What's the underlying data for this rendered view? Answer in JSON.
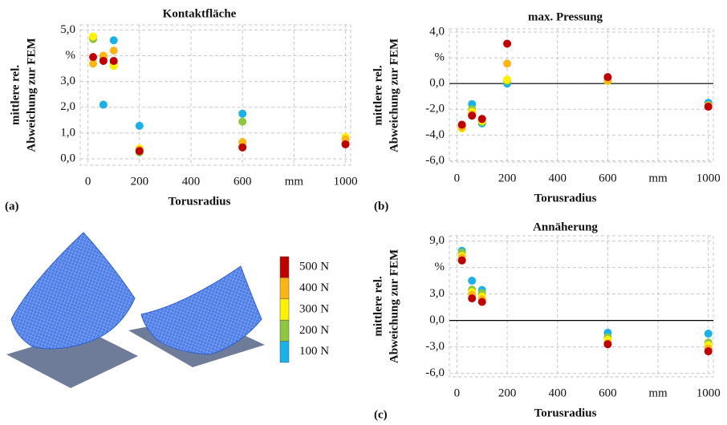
{
  "legend": {
    "series": [
      {
        "name": "500 N",
        "color": "#c00000"
      },
      {
        "name": "400 N",
        "color": "#fdb515"
      },
      {
        "name": "300 N",
        "color": "#fff200"
      },
      {
        "name": "200 N",
        "color": "#8dc63f"
      },
      {
        "name": "100 N",
        "color": "#1ab0e8"
      }
    ]
  },
  "chart_data": [
    {
      "type": "scatter",
      "title": "Kontaktfläche",
      "panel_label": "(a)",
      "x_label": "Torusradius",
      "y_label": [
        "mittlere rel.",
        "Abweichung zur FEM"
      ],
      "x": [
        20,
        60,
        100,
        200,
        600,
        1000
      ],
      "xlim": [
        -30,
        1020
      ],
      "xticks": [
        0,
        200,
        400,
        600,
        {
          "value": 800,
          "label": "mm"
        },
        1000
      ],
      "ylim": [
        -0.25,
        5.2
      ],
      "yticks": [
        {
          "value": 0,
          "label": "0,0"
        },
        {
          "value": 1,
          "label": "1,0"
        },
        {
          "value": 2,
          "label": "2,0"
        },
        {
          "value": 3,
          "label": "3,0"
        },
        {
          "value": 4,
          "label": "%"
        },
        {
          "value": 5,
          "label": "5,0"
        }
      ],
      "grid": true,
      "zero_line": false,
      "series": [
        {
          "values": [
            3.95,
            3.8,
            3.8,
            0.3,
            0.44,
            0.56
          ]
        },
        {
          "values": [
            3.7,
            4.0,
            4.2,
            0.35,
            0.65,
            0.75
          ]
        },
        {
          "values": [
            4.75,
            4.0,
            3.6,
            0.4,
            0.5,
            0.85
          ]
        },
        {
          "values": [
            4.65,
            3.9,
            3.7,
            0.25,
            1.44,
            0.6
          ]
        },
        {
          "values": [
            4.7,
            2.1,
            4.6,
            1.28,
            1.75,
            0.6
          ]
        }
      ]
    },
    {
      "type": "scatter",
      "title": "max. Pressung",
      "panel_label": "(b)",
      "x_label": "Torusradius",
      "y_label": [
        "mittlere rel.",
        "Abweichung zur FEM"
      ],
      "x": [
        20,
        60,
        100,
        200,
        600,
        1000
      ],
      "xlim": [
        -30,
        1020
      ],
      "xticks": [
        0,
        200,
        400,
        600,
        {
          "value": 800,
          "label": "mm"
        },
        1000
      ],
      "ylim": [
        -6.1,
        4.25
      ],
      "yticks": [
        {
          "value": -6,
          "label": "-6,0"
        },
        {
          "value": -4,
          "label": "-4,0"
        },
        {
          "value": -2,
          "label": "-2,0"
        },
        {
          "value": 0,
          "label": "0,0"
        },
        {
          "value": 2,
          "label": "%"
        },
        {
          "value": 4,
          "label": "4,0"
        }
      ],
      "grid": true,
      "zero_line": true,
      "series": [
        {
          "values": [
            -3.2,
            -2.5,
            -2.75,
            3.1,
            0.5,
            -1.8
          ]
        },
        {
          "values": [
            -3.4,
            -2.4,
            -2.8,
            1.55,
            0.25,
            -1.7
          ]
        },
        {
          "values": [
            -3.5,
            -2.2,
            -2.9,
            0.3,
            0.2,
            -1.7
          ]
        },
        {
          "values": [
            -3.3,
            -2.0,
            -3.0,
            0.2,
            0.2,
            -1.7
          ]
        },
        {
          "values": [
            -3.3,
            -1.6,
            -3.1,
            0.0,
            0.2,
            -1.5
          ]
        }
      ]
    },
    {
      "type": "scatter",
      "title": "Annäherung",
      "panel_label": "(c)",
      "x_label": "Torusradius",
      "y_label": [
        "mittlere rel.",
        "Abweichung zur FEM"
      ],
      "x": [
        20,
        60,
        100,
        600,
        1000
      ],
      "xlim": [
        -30,
        1020
      ],
      "xticks": [
        0,
        200,
        400,
        600,
        {
          "value": 800,
          "label": "mm"
        },
        1000
      ],
      "ylim": [
        -6.4,
        9.6
      ],
      "yticks": [
        {
          "value": -6,
          "label": "-6,0"
        },
        {
          "value": -3,
          "label": "-3,0"
        },
        {
          "value": 0,
          "label": "0,0"
        },
        {
          "value": 3,
          "label": "3,0"
        },
        {
          "value": 6,
          "label": "%"
        },
        {
          "value": 9,
          "label": "9,0"
        }
      ],
      "grid": true,
      "zero_line": true,
      "series": [
        {
          "values": [
            6.8,
            2.5,
            2.1,
            -2.7,
            -3.5
          ]
        },
        {
          "values": [
            7.1,
            2.9,
            2.4,
            -2.6,
            -3.2
          ]
        },
        {
          "values": [
            7.3,
            3.2,
            2.7,
            -2.2,
            -2.8
          ]
        },
        {
          "values": [
            7.7,
            3.5,
            3.1,
            -1.9,
            -2.5
          ]
        },
        {
          "values": [
            7.9,
            4.5,
            3.45,
            -1.4,
            -1.5
          ]
        }
      ]
    }
  ]
}
